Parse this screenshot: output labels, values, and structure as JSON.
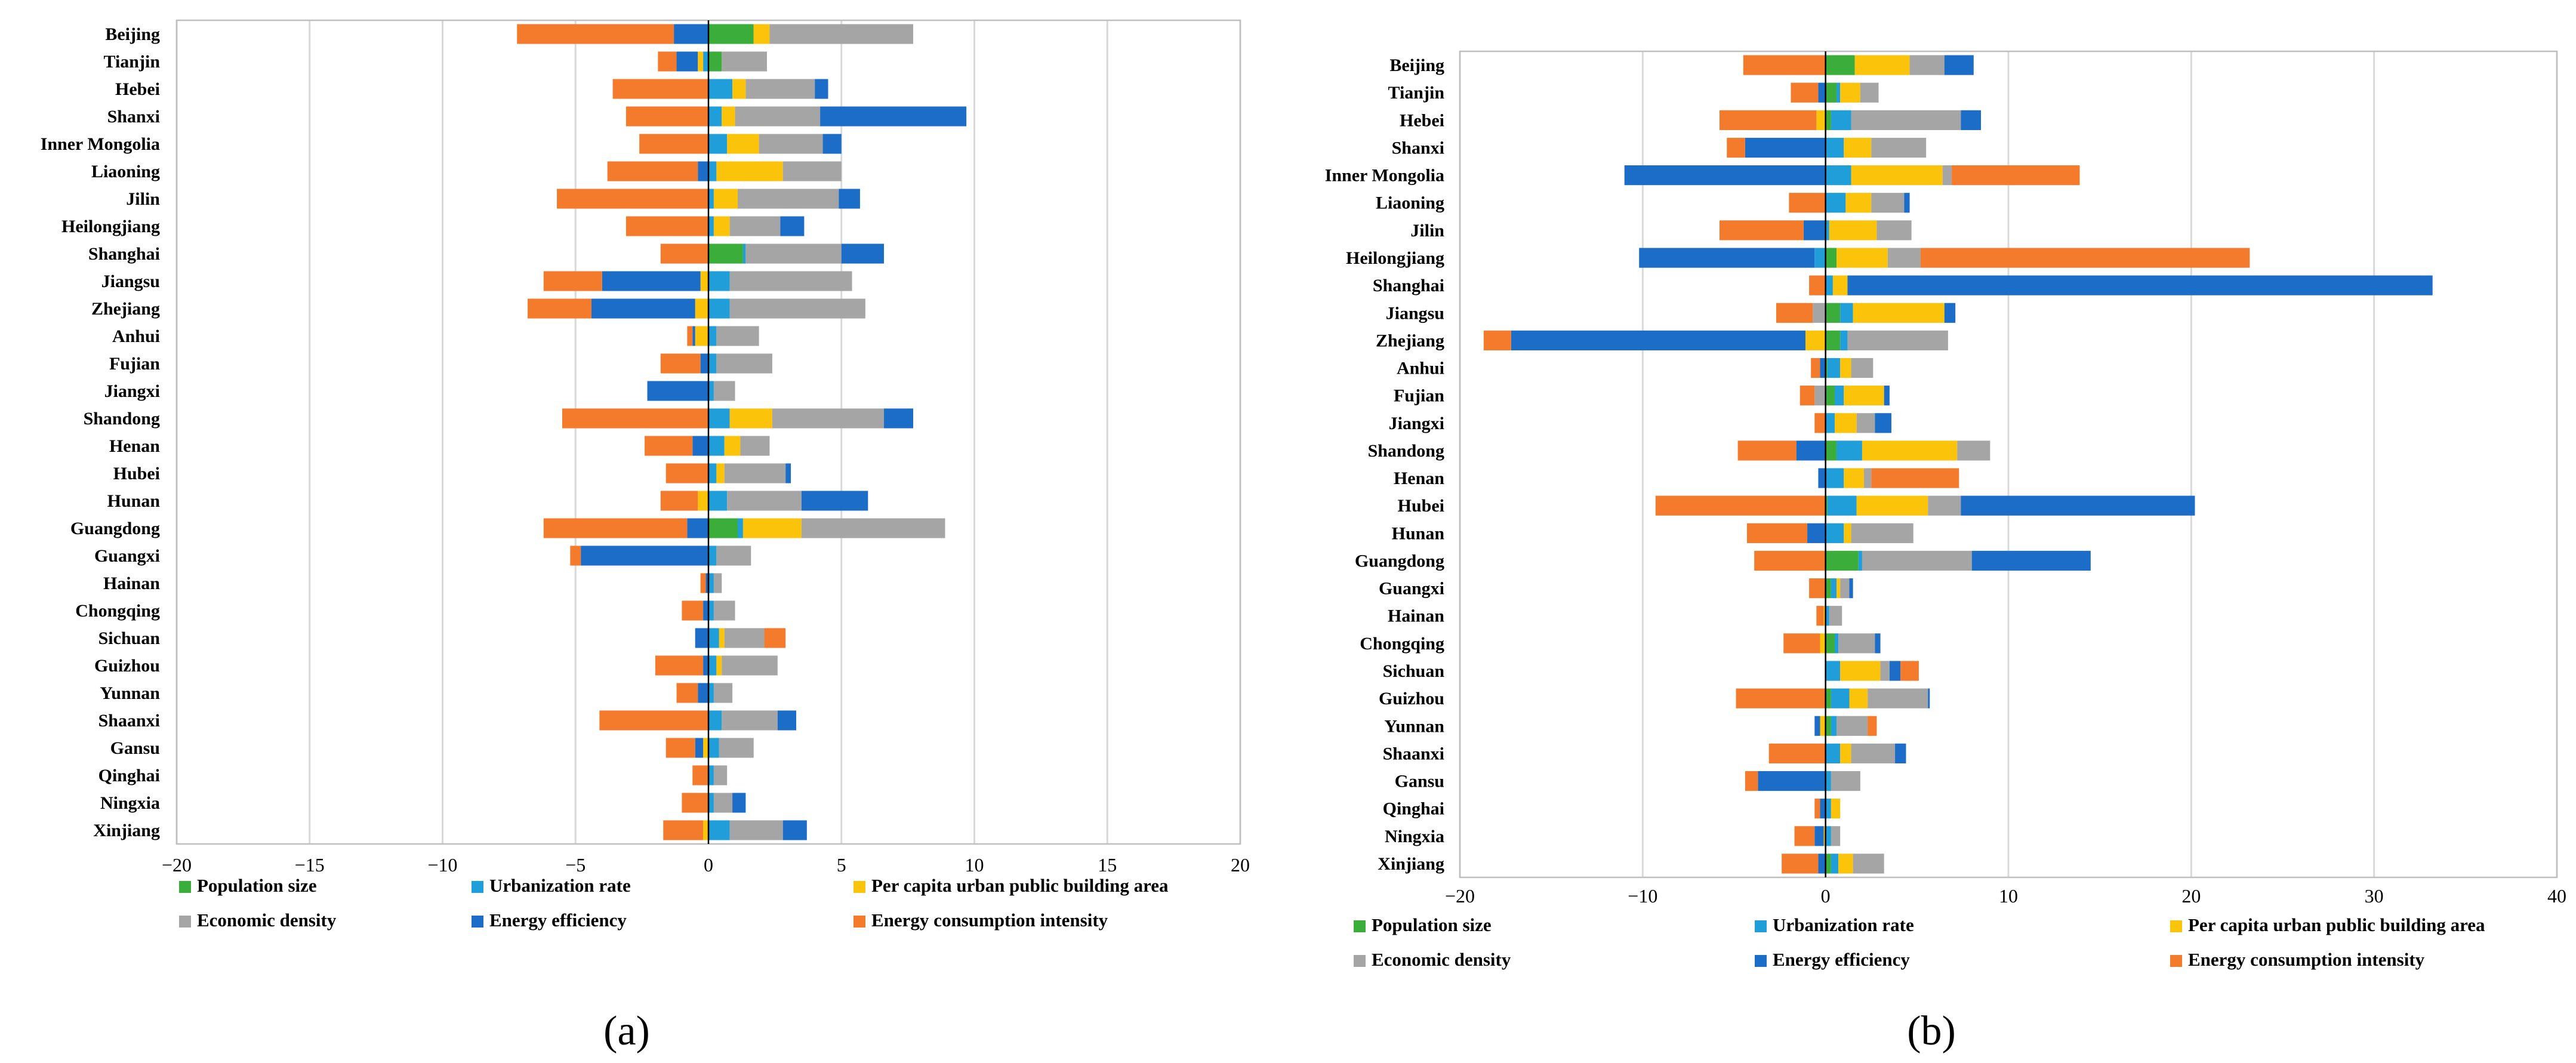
{
  "chart_data": [
    {
      "type": "bar",
      "orientation": "horizontal",
      "stacked": true,
      "caption": "(a)",
      "xlim": [
        -20,
        20
      ],
      "xticks": [
        "−20",
        "−15",
        "−10",
        "−5",
        "0",
        "5",
        "10",
        "15",
        "20"
      ],
      "grid": true,
      "categories": [
        "Beijing",
        "Tianjin",
        "Hebei",
        "Shanxi",
        "Inner Mongolia",
        "Liaoning",
        "Jilin",
        "Heilongjiang",
        "Shanghai",
        "Jiangsu",
        "Zhejiang",
        "Anhui",
        "Fujian",
        "Jiangxi",
        "Shandong",
        "Henan",
        "Hubei",
        "Hunan",
        "Guangdong",
        "Guangxi",
        "Hainan",
        "Chongqing",
        "Sichuan",
        "Guizhou",
        "Yunnan",
        "Shaanxi",
        "Gansu",
        "Qinghai",
        "Ningxia",
        "Xinjiang"
      ],
      "series": [
        {
          "name": "Population size",
          "color": "#3aad3a",
          "values": [
            1.7,
            0.5,
            0,
            0,
            0,
            0,
            0,
            0,
            1.3,
            0,
            0,
            0,
            0,
            0,
            0,
            0,
            0,
            0,
            1.1,
            0,
            0,
            0,
            0,
            0,
            0,
            0,
            0,
            0,
            0,
            0
          ]
        },
        {
          "name": "Urbanization rate",
          "color": "#1f9ed9",
          "values": [
            0,
            -0.2,
            0.9,
            0.5,
            0.7,
            0.3,
            0.2,
            0.2,
            0.1,
            0.8,
            0.8,
            0.3,
            0.3,
            0.2,
            0.8,
            0.6,
            0.3,
            0.7,
            0.2,
            0.3,
            0.2,
            0.2,
            0.4,
            0.3,
            0.2,
            0.5,
            0.4,
            0.2,
            0.2,
            0.8
          ]
        },
        {
          "name": "Per capita urban public building area",
          "color": "#fcc30b",
          "values": [
            0.6,
            -0.2,
            0.5,
            0.5,
            1.2,
            2.5,
            0.9,
            0.6,
            0,
            -0.3,
            -0.5,
            -0.5,
            0,
            0,
            1.6,
            0.6,
            0.3,
            -0.4,
            2.2,
            0,
            0,
            0,
            0.2,
            0.2,
            0,
            0,
            -0.2,
            0,
            0,
            -0.2
          ]
        },
        {
          "name": "Economic density",
          "color": "#a5a5a5",
          "values": [
            5.4,
            1.7,
            2.6,
            3.2,
            2.4,
            2.2,
            3.8,
            1.9,
            3.6,
            4.6,
            5.1,
            1.6,
            2.1,
            0.8,
            4.2,
            1.1,
            2.3,
            2.8,
            5.4,
            1.3,
            0.3,
            0.8,
            1.5,
            2.1,
            0.7,
            2.1,
            1.3,
            0.5,
            0.7,
            2.0
          ]
        },
        {
          "name": "Energy efficiency",
          "color": "#1c6dc7",
          "values": [
            -1.3,
            -0.8,
            0.5,
            5.5,
            0.7,
            -0.4,
            0.8,
            0.9,
            1.6,
            -3.7,
            -3.9,
            -0.1,
            -0.3,
            -2.3,
            1.1,
            -0.6,
            0.2,
            2.5,
            -0.8,
            -4.8,
            -0.1,
            -0.2,
            -0.5,
            -0.2,
            -0.4,
            0.7,
            -0.3,
            0,
            0.5,
            0.9
          ]
        },
        {
          "name": "Energy consumption intensity",
          "color": "#f47b2b",
          "values": [
            -5.9,
            -0.7,
            -3.6,
            -3.1,
            -2.6,
            -3.4,
            -5.7,
            -3.1,
            -1.8,
            -2.2,
            -2.4,
            -0.2,
            -1.5,
            0,
            -5.5,
            -1.8,
            -1.6,
            -1.4,
            -5.4,
            -0.4,
            -0.2,
            -0.8,
            0.8,
            -1.8,
            -0.8,
            -4.1,
            -1.1,
            -0.6,
            -1.0,
            -1.5
          ]
        }
      ]
    },
    {
      "type": "bar",
      "orientation": "horizontal",
      "stacked": true,
      "caption": "(b)",
      "xlim": [
        -20,
        40
      ],
      "xticks": [
        "−20",
        "−10",
        "0",
        "10",
        "20",
        "30",
        "40"
      ],
      "grid": true,
      "categories": [
        "Beijing",
        "Tianjin",
        "Hebei",
        "Shanxi",
        "Inner Mongolia",
        "Liaoning",
        "Jilin",
        "Heilongjiang",
        "Shanghai",
        "Jiangsu",
        "Zhejiang",
        "Anhui",
        "Fujian",
        "Jiangxi",
        "Shandong",
        "Henan",
        "Hubei",
        "Hunan",
        "Guangdong",
        "Guangxi",
        "Hainan",
        "Chongqing",
        "Sichuan",
        "Guizhou",
        "Yunnan",
        "Shaanxi",
        "Gansu",
        "Qinghai",
        "Ningxia",
        "Xinjiang"
      ],
      "series": [
        {
          "name": "Population size",
          "color": "#3aad3a",
          "values": [
            1.6,
            0.6,
            0.3,
            0,
            0,
            0,
            0,
            0.6,
            0,
            0.8,
            0.8,
            0.1,
            0.5,
            0,
            0.6,
            0,
            0.1,
            0,
            1.8,
            0.3,
            0,
            0.5,
            0,
            0.3,
            0.3,
            0,
            0,
            0,
            0,
            0.3
          ]
        },
        {
          "name": "Urbanization rate",
          "color": "#1f9ed9",
          "values": [
            0,
            0.2,
            1.1,
            1.0,
            1.4,
            1.1,
            0.2,
            -0.6,
            0.4,
            0.7,
            0.4,
            0.7,
            0.5,
            0.5,
            1.4,
            1.0,
            1.6,
            1.0,
            0.2,
            0.3,
            0.2,
            0.2,
            0.8,
            1.0,
            0.3,
            0.8,
            0.3,
            0.3,
            0.3,
            0.4
          ]
        },
        {
          "name": "Per capita urban public building area",
          "color": "#fcc30b",
          "values": [
            3.0,
            1.1,
            -0.5,
            1.5,
            5.0,
            1.4,
            2.6,
            2.8,
            0.8,
            5.0,
            -1.1,
            0.6,
            2.2,
            1.2,
            5.2,
            1.1,
            3.9,
            0.4,
            0,
            0.2,
            -0.1,
            -0.3,
            2.2,
            1.0,
            -0.3,
            0.6,
            0,
            0.5,
            -0.1,
            0.8
          ]
        },
        {
          "name": "Economic density",
          "color": "#a5a5a5",
          "values": [
            1.9,
            1.0,
            6.0,
            3.0,
            0.5,
            1.8,
            1.9,
            1.8,
            0,
            -0.7,
            5.5,
            1.2,
            -0.6,
            1.0,
            1.8,
            0.4,
            1.8,
            3.4,
            6.0,
            0.5,
            0.7,
            2.0,
            0.5,
            3.3,
            1.7,
            2.4,
            1.6,
            0,
            0.5,
            1.7
          ]
        },
        {
          "name": "Energy efficiency",
          "color": "#1c6dc7",
          "values": [
            1.6,
            -0.4,
            1.1,
            -4.4,
            -11.0,
            0.3,
            -1.2,
            -9.6,
            32.0,
            0.6,
            -16.1,
            -0.3,
            0.3,
            0.9,
            -1.6,
            -0.4,
            12.8,
            -1.0,
            6.5,
            0.2,
            0,
            0.3,
            0.6,
            0.1,
            -0.3,
            0.6,
            -3.7,
            -0.3,
            -0.5,
            -0.4
          ]
        },
        {
          "name": "Energy consumption intensity",
          "color": "#f47b2b",
          "values": [
            -4.5,
            -1.5,
            -5.3,
            -1.0,
            7.0,
            -2.0,
            -4.6,
            18.0,
            -0.9,
            -2.0,
            -1.5,
            -0.5,
            -0.8,
            -0.6,
            -3.2,
            4.8,
            -9.3,
            -3.3,
            -3.9,
            -0.9,
            -0.4,
            -2.0,
            1.0,
            -4.9,
            0.5,
            -3.1,
            -0.7,
            -0.3,
            -1.1,
            -2.0
          ]
        }
      ]
    }
  ]
}
